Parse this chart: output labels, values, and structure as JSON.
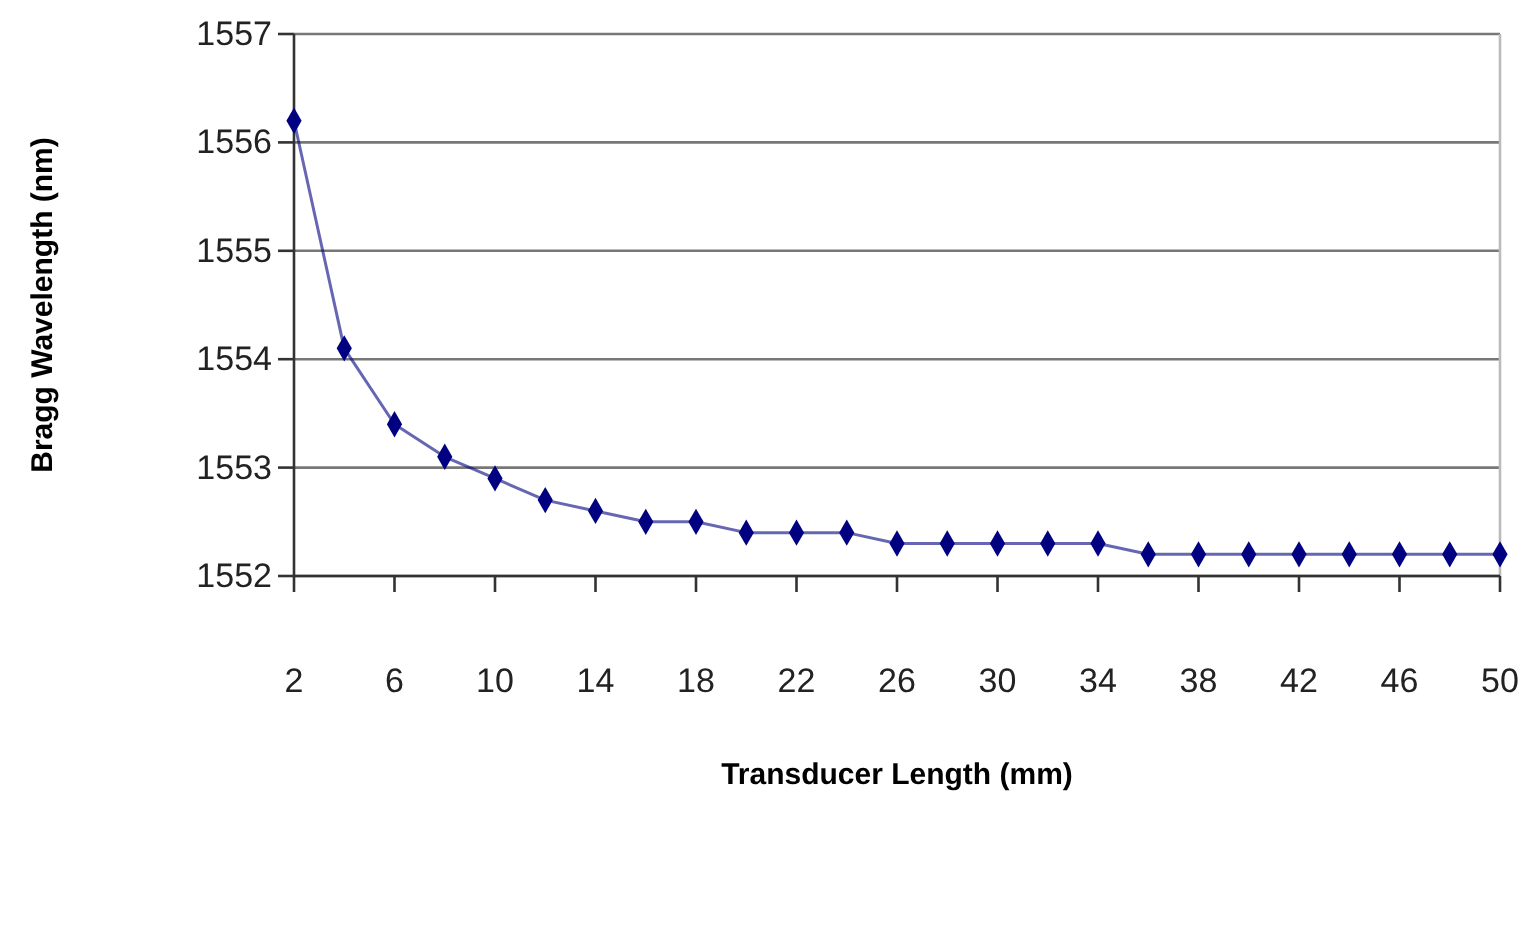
{
  "chart_data": {
    "type": "line",
    "xlabel": "Transducer Length (mm)",
    "ylabel": "Bragg Wavelength (nm)",
    "x": [
      2,
      4,
      6,
      8,
      10,
      12,
      14,
      16,
      18,
      20,
      22,
      24,
      26,
      28,
      30,
      32,
      34,
      36,
      38,
      40,
      42,
      44,
      46,
      48,
      50
    ],
    "series": [
      {
        "color": "#000080",
        "values": [
          1556.2,
          1554.1,
          1553.4,
          1553.1,
          1552.9,
          1552.7,
          1552.6,
          1552.5,
          1552.5,
          1552.4,
          1552.4,
          1552.4,
          1552.3,
          1552.3,
          1552.3,
          1552.3,
          1552.3,
          1552.2,
          1552.2,
          1552.2,
          1552.2,
          1552.2,
          1552.2,
          1552.2,
          1552.2
        ]
      }
    ],
    "xlim": [
      2,
      50
    ],
    "xticks": [
      2,
      6,
      10,
      14,
      18,
      22,
      26,
      30,
      34,
      38,
      42,
      46,
      50
    ],
    "ylim": [
      1552,
      1557
    ],
    "yticks": [
      1552,
      1553,
      1554,
      1555,
      1556,
      1557
    ],
    "grid": "y",
    "marker": "diamond",
    "line_style": "solid"
  }
}
